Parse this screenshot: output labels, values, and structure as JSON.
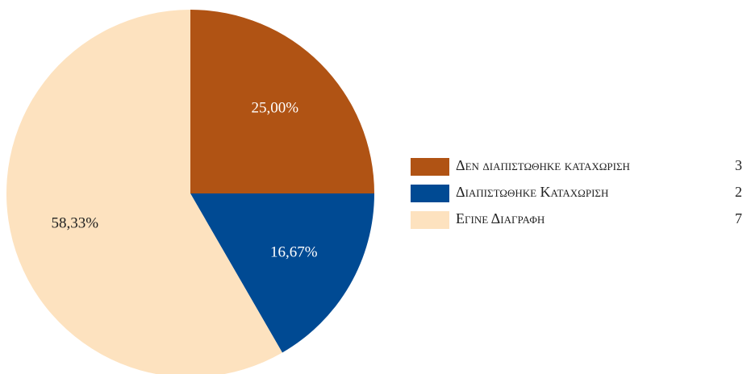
{
  "chart_data": {
    "type": "pie",
    "categories": [
      "Δεν διαπιστωθηκε καταχωριση",
      "Διαπιστωθηκε Καταχωριση",
      "Εγινε Διαγραφη"
    ],
    "values": [
      25,
      16.67,
      58.33
    ],
    "value_labels": [
      "25,00%",
      "16,67%",
      "58,33%"
    ],
    "counts": [
      3,
      2,
      7
    ],
    "colors": [
      "#b05314",
      "#004a93",
      "#fde2bf"
    ],
    "legend": "right"
  }
}
